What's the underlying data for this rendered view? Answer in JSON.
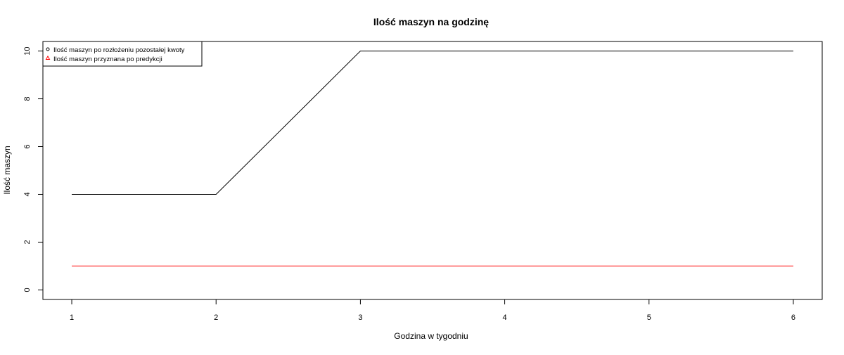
{
  "chart_data": {
    "type": "line",
    "title": "Ilość maszyn na godzinę",
    "xlabel": "Godzina w tygodniu",
    "ylabel": "Ilość maszyn",
    "x": [
      1,
      2,
      3,
      4,
      5,
      6
    ],
    "x_ticks": [
      "1",
      "2",
      "3",
      "4",
      "5",
      "6"
    ],
    "y_ticks": [
      "0",
      "2",
      "4",
      "6",
      "8",
      "10"
    ],
    "xlim": [
      0.8,
      6.2
    ],
    "ylim": [
      -0.4,
      10.4
    ],
    "grid": false,
    "legend_position": "top-left",
    "series": [
      {
        "name": "Ilość maszyn po rozłożeniu pozostałej kwoty",
        "values": [
          4,
          4,
          10,
          10,
          10,
          10
        ],
        "color": "#000000",
        "legend_symbol": "circle"
      },
      {
        "name": "Ilość maszyn przyznana po predykcji",
        "values": [
          1,
          1,
          1,
          1,
          1,
          1
        ],
        "color": "#ff0000",
        "legend_symbol": "triangle"
      }
    ]
  }
}
